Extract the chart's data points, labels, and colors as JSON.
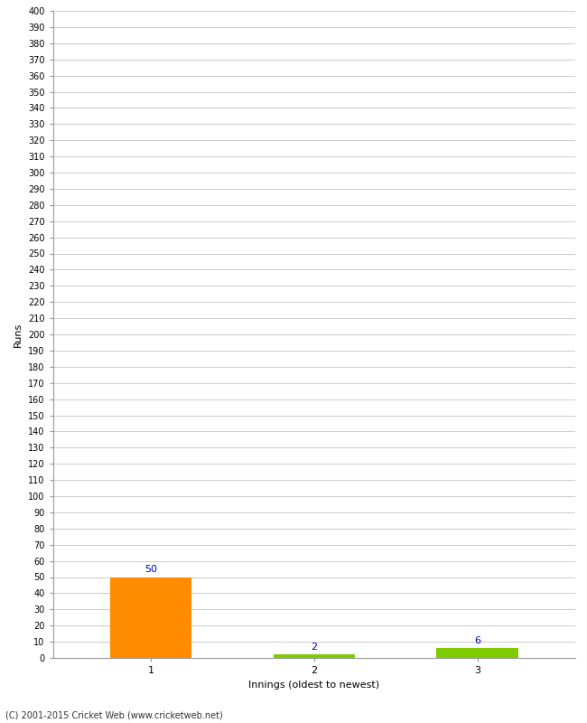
{
  "categories": [
    "1",
    "2",
    "3"
  ],
  "values": [
    50,
    2,
    6
  ],
  "bar_colors": [
    "#FF8C00",
    "#7FCC00",
    "#7FCC00"
  ],
  "xlabel": "Innings (oldest to newest)",
  "ylabel": "Runs",
  "ylim": [
    0,
    400
  ],
  "ytick_step": 10,
  "background_color": "#ffffff",
  "grid_color": "#cccccc",
  "label_color": "#0000cc",
  "footer_text": "(C) 2001-2015 Cricket Web (www.cricketweb.net)"
}
